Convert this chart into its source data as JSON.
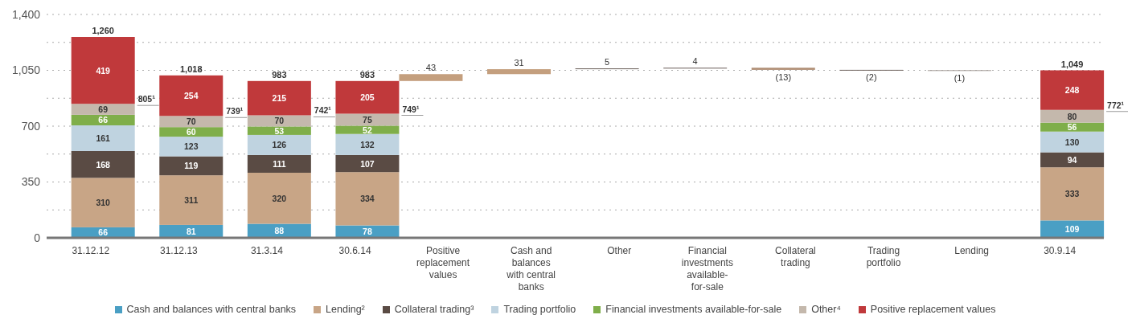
{
  "chart_data": {
    "type": "bar",
    "stacked": true,
    "categories": [
      "31.12.12",
      "31.12.13",
      "31.3.14",
      "30.6.14",
      "Positive replacement values",
      "Cash and balances with central banks",
      "Other",
      "Financial investments available-for-sale",
      "Collateral trading",
      "Trading portfolio",
      "Lending",
      "30.9.14"
    ],
    "series": [
      {
        "name": "Cash and balances with central banks",
        "color": "#4a9fc4",
        "values": [
          66,
          81,
          88,
          78,
          null,
          null,
          null,
          null,
          null,
          null,
          null,
          109
        ]
      },
      {
        "name": "Lending²",
        "color": "#c8a586",
        "values": [
          310,
          311,
          320,
          334,
          null,
          null,
          null,
          null,
          null,
          null,
          null,
          333
        ]
      },
      {
        "name": "Collateral trading³",
        "color": "#5a4b44",
        "values": [
          168,
          119,
          111,
          107,
          null,
          null,
          null,
          null,
          null,
          null,
          null,
          94
        ]
      },
      {
        "name": "Trading portfolio",
        "color": "#bfd3e0",
        "values": [
          161,
          123,
          126,
          132,
          null,
          null,
          null,
          null,
          null,
          null,
          null,
          130
        ]
      },
      {
        "name": "Financial investments available-for-sale",
        "color": "#7fae4a",
        "values": [
          66,
          60,
          53,
          52,
          null,
          null,
          null,
          null,
          null,
          null,
          null,
          56
        ]
      },
      {
        "name": "Other⁴",
        "color": "#c4b8ac",
        "values": [
          69,
          70,
          70,
          75,
          null,
          null,
          null,
          null,
          null,
          null,
          null,
          80
        ]
      },
      {
        "name": "Positive replacement values",
        "color": "#c0393b",
        "values": [
          419,
          254,
          215,
          205,
          null,
          null,
          null,
          null,
          null,
          null,
          null,
          248
        ]
      },
      {
        "type": "bar",
        "values": [
          null,
          null,
          null,
          null,
          43,
          31,
          5,
          4,
          -13,
          -2,
          -1,
          null
        ],
        "base": [
          null,
          null,
          null,
          null,
          983,
          1026,
          1057,
          1062,
          1066,
          1053,
          1051,
          null
        ],
        "colors": [
          null,
          null,
          null,
          null,
          "#c49f7e",
          "#c49f7e",
          "#6b5f5a",
          "#6b5f5a",
          "#b08e74",
          "#6b5f5a",
          "#a09892",
          null
        ],
        "value_labels": [
          null,
          null,
          null,
          null,
          "43",
          "31",
          "5",
          "4",
          "(13)",
          "(2)",
          "(1)",
          null
        ]
      }
    ],
    "totals": [
      "1,260",
      "1,018",
      "983",
      "983",
      null,
      null,
      null,
      null,
      null,
      null,
      null,
      "1,049"
    ],
    "data_labels": true,
    "ylim": [
      0,
      1400
    ],
    "yticks": [
      0,
      {
        "value": 175,
        "label": null
      },
      350,
      {
        "value": 525,
        "label": null
      },
      700,
      {
        "value": 875,
        "label": null
      },
      {
        "value": 1050,
        "label": "1,050"
      },
      {
        "value": 1225,
        "label": null
      },
      {
        "value": 1400,
        "label": "1,400"
      }
    ],
    "grid": "y",
    "legend": "bottom",
    "annotations": [
      "805¹",
      "739¹",
      "742¹",
      "749¹",
      "772¹"
    ]
  }
}
